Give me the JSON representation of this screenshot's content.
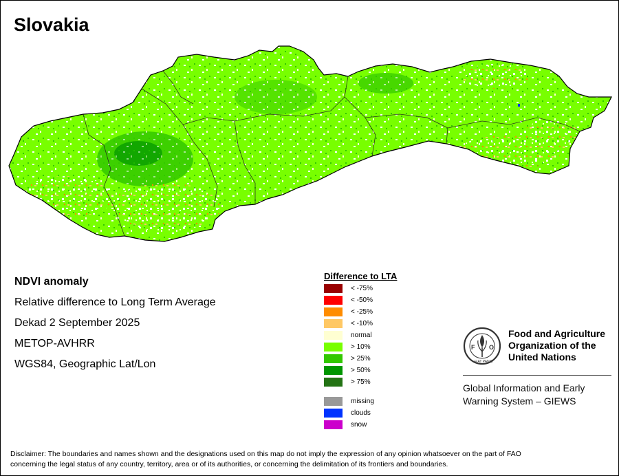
{
  "title": "Slovakia",
  "info": {
    "heading": "NDVI anomaly",
    "line1": "Relative difference to Long Term Average",
    "line2": "Dekad 2 September 2025",
    "line3": "METOP-AVHRR",
    "line4": "WGS84, Geographic Lat/Lon"
  },
  "legend": {
    "title": "Difference to LTA",
    "items": [
      {
        "label": "< -75%",
        "color": "#990000"
      },
      {
        "label": "< -50%",
        "color": "#ff0000"
      },
      {
        "label": "< -25%",
        "color": "#ff8c00"
      },
      {
        "label": "< -10%",
        "color": "#ffc864"
      },
      {
        "label": "normal",
        "color": "#ffffd2"
      },
      {
        "label": "> 10%",
        "color": "#78ff00"
      },
      {
        "label": "> 25%",
        "color": "#32c800"
      },
      {
        "label": "> 50%",
        "color": "#009600"
      },
      {
        "label": "> 75%",
        "color": "#237314"
      }
    ],
    "extra": [
      {
        "label": "missing",
        "color": "#999999"
      },
      {
        "label": "clouds",
        "color": "#0033ff"
      },
      {
        "label": "snow",
        "color": "#cc00cc"
      }
    ]
  },
  "fao": {
    "name_line1": "Food and Agriculture",
    "name_line2": "Organization of the",
    "name_line3": "United Nations",
    "logo_text": "FAO",
    "logo_motto": "FIAT PANIS",
    "giews_line1": "Global Information and Early",
    "giews_line2": "Warning System – GIEWS"
  },
  "disclaimer": {
    "line1": "Disclaimer: The boundaries and names shown and the designations used on this map do not imply the expression of any opinion whatsoever on the part of FAO",
    "line2": "concerning the legal status of any country, territory, area or of its authorities, or concerning the delimitation of its frontiers and boundaries."
  }
}
